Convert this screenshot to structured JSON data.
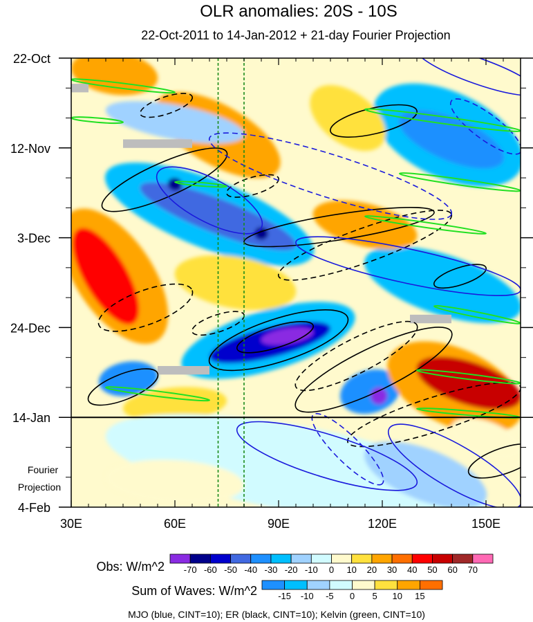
{
  "chart_data": {
    "type": "heatmap",
    "title": "OLR anomalies: 20S - 10S",
    "subtitle": "22-Oct-2011 to 14-Jan-2012 + 21-day Fourier Projection",
    "x_axis": {
      "range": [
        30,
        160
      ],
      "ticks": [
        {
          "v": 30,
          "label": "30E"
        },
        {
          "v": 60,
          "label": "60E"
        },
        {
          "v": 90,
          "label": "90E"
        },
        {
          "v": 120,
          "label": "120E"
        },
        {
          "v": 150,
          "label": "150E"
        }
      ]
    },
    "y_axis": {
      "range_days": [
        0,
        105
      ],
      "ticks": [
        {
          "v": 0,
          "label": "22-Oct"
        },
        {
          "v": 21,
          "label": "12-Nov"
        },
        {
          "v": 42,
          "label": "3-Dec"
        },
        {
          "v": 63,
          "label": "24-Dec"
        },
        {
          "v": 84,
          "label": "14-Jan"
        },
        {
          "v": 105,
          "label": "4-Feb"
        }
      ]
    },
    "projection_start_day": 84,
    "projection_label": [
      "Fourier",
      "Projection"
    ],
    "reference_lines_lon": [
      72.5,
      80
    ],
    "obs_colorbar": {
      "label": "Obs: W/m^2",
      "levels": [
        -70,
        -60,
        -50,
        -40,
        -30,
        -20,
        -10,
        0,
        10,
        20,
        30,
        40,
        50,
        60,
        70
      ],
      "colors": [
        "#8a2be2",
        "#00008b",
        "#0000cd",
        "#4169e1",
        "#1e90ff",
        "#00bfff",
        "#a0d2ff",
        "#d1fbff",
        "#fffacd",
        "#ffe13e",
        "#ffa500",
        "#ff6f00",
        "#ff0000",
        "#c80000",
        "#a02828",
        "#ff69b4"
      ]
    },
    "waves_colorbar": {
      "label": "Sum of Waves: W/m^2",
      "levels": [
        -15,
        -10,
        -5,
        0,
        5,
        10,
        15
      ],
      "colors": [
        "#1e90ff",
        "#00bfff",
        "#a0d2ff",
        "#d1fbff",
        "#fffacd",
        "#ffe13e",
        "#ffa500",
        "#ff6f00"
      ]
    },
    "footnote": "MJO (blue, CINT=10); ER (black, CINT=10); Kelvin (green, CINT=10)",
    "obs_features": [
      {
        "v": -25,
        "a": [
          40,
          27
        ],
        "b": [
          100,
          46
        ],
        "w": 8
      },
      {
        "v": -45,
        "a": [
          50,
          30
        ],
        "b": [
          95,
          44
        ],
        "w": 4
      },
      {
        "v": -70,
        "a": [
          58,
          29
        ],
        "b": [
          62,
          30
        ],
        "w": 1.5
      },
      {
        "v": -70,
        "a": [
          83,
          41
        ],
        "b": [
          87,
          41
        ],
        "w": 1.5
      },
      {
        "v": -25,
        "a": [
          118,
          10
        ],
        "b": [
          160,
          26
        ],
        "w": 10
      },
      {
        "v": -40,
        "a": [
          125,
          14
        ],
        "b": [
          155,
          24
        ],
        "w": 5
      },
      {
        "v": -30,
        "a": [
          115,
          47
        ],
        "b": [
          160,
          59
        ],
        "w": 7
      },
      {
        "v": -30,
        "a": [
          62,
          72
        ],
        "b": [
          112,
          60
        ],
        "w": 7
      },
      {
        "v": -60,
        "a": [
          70,
          70
        ],
        "b": [
          105,
          63
        ],
        "w": 3.5
      },
      {
        "v": -75,
        "a": [
          85,
          66
        ],
        "b": [
          100,
          64
        ],
        "w": 1.8
      },
      {
        "v": -35,
        "a": [
          108,
          80
        ],
        "b": [
          125,
          76
        ],
        "w": 5
      },
      {
        "v": -75,
        "a": [
          117,
          79
        ],
        "b": [
          121,
          79
        ],
        "w": 2
      },
      {
        "v": -40,
        "a": [
          38,
          76
        ],
        "b": [
          55,
          74
        ],
        "w": 4
      },
      {
        "v": 25,
        "a": [
          30,
          36
        ],
        "b": [
          55,
          66
        ],
        "w": 9
      },
      {
        "v": 45,
        "a": [
          32,
          40
        ],
        "b": [
          48,
          62
        ],
        "w": 5
      },
      {
        "v": 20,
        "a": [
          30,
          2
        ],
        "b": [
          55,
          5
        ],
        "w": 5
      },
      {
        "v": 20,
        "a": [
          55,
          10
        ],
        "b": [
          90,
          26
        ],
        "w": 7
      },
      {
        "v": 25,
        "a": [
          100,
          36
        ],
        "b": [
          130,
          42
        ],
        "w": 5
      },
      {
        "v": 25,
        "a": [
          122,
          70
        ],
        "b": [
          160,
          84
        ],
        "w": 9
      },
      {
        "v": 50,
        "a": [
          130,
          72
        ],
        "b": [
          160,
          80
        ],
        "w": 5
      },
      {
        "v": 15,
        "a": [
          60,
          50
        ],
        "b": [
          95,
          55
        ],
        "w": 6
      },
      {
        "v": 15,
        "a": [
          100,
          8
        ],
        "b": [
          120,
          20
        ],
        "w": 6
      },
      {
        "v": -15,
        "a": [
          40,
          12
        ],
        "b": [
          80,
          18
        ],
        "w": 4
      },
      {
        "v": 15,
        "a": [
          45,
          82
        ],
        "b": [
          75,
          80
        ],
        "w": 4
      },
      {
        "v": -8,
        "a": [
          40,
          88
        ],
        "b": [
          150,
          104
        ],
        "w": 10
      },
      {
        "v": -12,
        "a": [
          115,
          92
        ],
        "b": [
          150,
          103
        ],
        "w": 6
      },
      {
        "v": 8,
        "a": [
          40,
          98
        ],
        "b": [
          80,
          100
        ],
        "w": 5
      },
      {
        "v": 8,
        "a": [
          140,
          86
        ],
        "b": [
          160,
          92
        ],
        "w": 4
      }
    ],
    "contours": [
      {
        "wave": "ER",
        "dash": false,
        "a": [
          39,
          34.9
        ],
        "b": [
          75,
          22
        ],
        "w": 4
      },
      {
        "wave": "ER",
        "dash": false,
        "a": [
          80,
          43
        ],
        "b": [
          135,
          36
        ],
        "w": 3
      },
      {
        "wave": "ER",
        "dash": false,
        "a": [
          70,
          71.2
        ],
        "b": [
          110,
          60.7
        ],
        "w": 5
      },
      {
        "wave": "ER",
        "dash": false,
        "a": [
          78,
          68
        ],
        "b": [
          100,
          62.5
        ],
        "w": 2.5
      },
      {
        "wave": "ER",
        "dash": false,
        "a": [
          95,
          81.7
        ],
        "b": [
          140,
          64
        ],
        "w": 5
      },
      {
        "wave": "ER",
        "dash": false,
        "a": [
          145,
          97
        ],
        "b": [
          165,
          91.4
        ],
        "w": 3
      },
      {
        "wave": "ER",
        "dash": false,
        "a": [
          35,
          80.1
        ],
        "b": [
          55,
          73.7
        ],
        "w": 3
      },
      {
        "wave": "ER",
        "dash": false,
        "a": [
          105,
          17.1
        ],
        "b": [
          130,
          12.3
        ],
        "w": 3
      },
      {
        "wave": "ER",
        "dash": false,
        "a": [
          135,
          53
        ],
        "b": [
          150,
          49
        ],
        "w": 2
      },
      {
        "wave": "ER",
        "dash": true,
        "a": [
          50,
          13.1
        ],
        "b": [
          65,
          9
        ],
        "w": 2
      },
      {
        "wave": "ER",
        "dash": true,
        "a": [
          75,
          31.7
        ],
        "b": [
          90,
          28.1
        ],
        "w": 2
      },
      {
        "wave": "ER",
        "dash": true,
        "a": [
          90,
          51
        ],
        "b": [
          140,
          36.5
        ],
        "w": 4
      },
      {
        "wave": "ER",
        "dash": true,
        "a": [
          38,
          62.4
        ],
        "b": [
          65,
          54.3
        ],
        "w": 4
      },
      {
        "wave": "ER",
        "dash": true,
        "a": [
          95,
          76.9
        ],
        "b": [
          130,
          62.4
        ],
        "w": 4
      },
      {
        "wave": "ER",
        "dash": true,
        "a": [
          110,
          89.8
        ],
        "b": [
          160,
          76.9
        ],
        "w": 4
      },
      {
        "wave": "ER",
        "dash": true,
        "a": [
          65,
          64
        ],
        "b": [
          80,
          60
        ],
        "w": 2
      },
      {
        "wave": "MJO",
        "dash": false,
        "a": [
          55,
          26.8
        ],
        "b": [
          85,
          39.7
        ],
        "w": 5
      },
      {
        "wave": "MJO",
        "dash": false,
        "a": [
          95,
          43
        ],
        "b": [
          160,
          54.3
        ],
        "w": 4
      },
      {
        "wave": "MJO",
        "dash": false,
        "a": [
          78,
          86.6
        ],
        "b": [
          130,
          99.5
        ],
        "w": 5
      },
      {
        "wave": "MJO",
        "dash": false,
        "a": [
          122,
          86.6
        ],
        "b": [
          160,
          104.4
        ],
        "w": 5
      },
      {
        "wave": "MJO",
        "dash": false,
        "a": [
          130,
          -2
        ],
        "b": [
          165,
          8
        ],
        "w": 3
      },
      {
        "wave": "MJO",
        "dash": true,
        "a": [
          70,
          18.7
        ],
        "b": [
          140,
          36.5
        ],
        "w": 5
      },
      {
        "wave": "MJO",
        "dash": true,
        "a": [
          100,
          83.4
        ],
        "b": [
          120,
          99.5
        ],
        "w": 3
      },
      {
        "wave": "MJO",
        "dash": true,
        "a": [
          140,
          10
        ],
        "b": [
          160,
          22
        ],
        "w": 3
      },
      {
        "wave": "Kelvin",
        "dash": false,
        "a": [
          30,
          5
        ],
        "b": [
          60,
          8
        ],
        "w": 0.6
      },
      {
        "wave": "Kelvin",
        "dash": false,
        "a": [
          30,
          14
        ],
        "b": [
          45,
          15
        ],
        "w": 0.5
      },
      {
        "wave": "Kelvin",
        "dash": false,
        "a": [
          115,
          12
        ],
        "b": [
          160,
          17
        ],
        "w": 0.8
      },
      {
        "wave": "Kelvin",
        "dash": false,
        "a": [
          125,
          27
        ],
        "b": [
          160,
          31
        ],
        "w": 0.7
      },
      {
        "wave": "Kelvin",
        "dash": false,
        "a": [
          115,
          37
        ],
        "b": [
          150,
          41
        ],
        "w": 0.6
      },
      {
        "wave": "Kelvin",
        "dash": false,
        "a": [
          40,
          77
        ],
        "b": [
          70,
          80
        ],
        "w": 0.6
      },
      {
        "wave": "Kelvin",
        "dash": false,
        "a": [
          135,
          58
        ],
        "b": [
          160,
          62
        ],
        "w": 0.6
      },
      {
        "wave": "Kelvin",
        "dash": false,
        "a": [
          130,
          73
        ],
        "b": [
          160,
          76
        ],
        "w": 0.6
      },
      {
        "wave": "Kelvin",
        "dash": false,
        "a": [
          60,
          29
        ],
        "b": [
          75,
          30
        ],
        "w": 0.4
      },
      {
        "wave": "Kelvin",
        "dash": false,
        "a": [
          130,
          82
        ],
        "b": [
          160,
          84
        ],
        "w": 0.5
      }
    ],
    "missing_boxes": [
      {
        "a": [
          45,
          19
        ],
        "b": [
          65,
          21
        ]
      },
      {
        "a": [
          55,
          72
        ],
        "b": [
          70,
          74
        ]
      },
      {
        "a": [
          30,
          6
        ],
        "b": [
          35,
          8
        ]
      },
      {
        "a": [
          128,
          60
        ],
        "b": [
          140,
          62
        ]
      }
    ]
  }
}
